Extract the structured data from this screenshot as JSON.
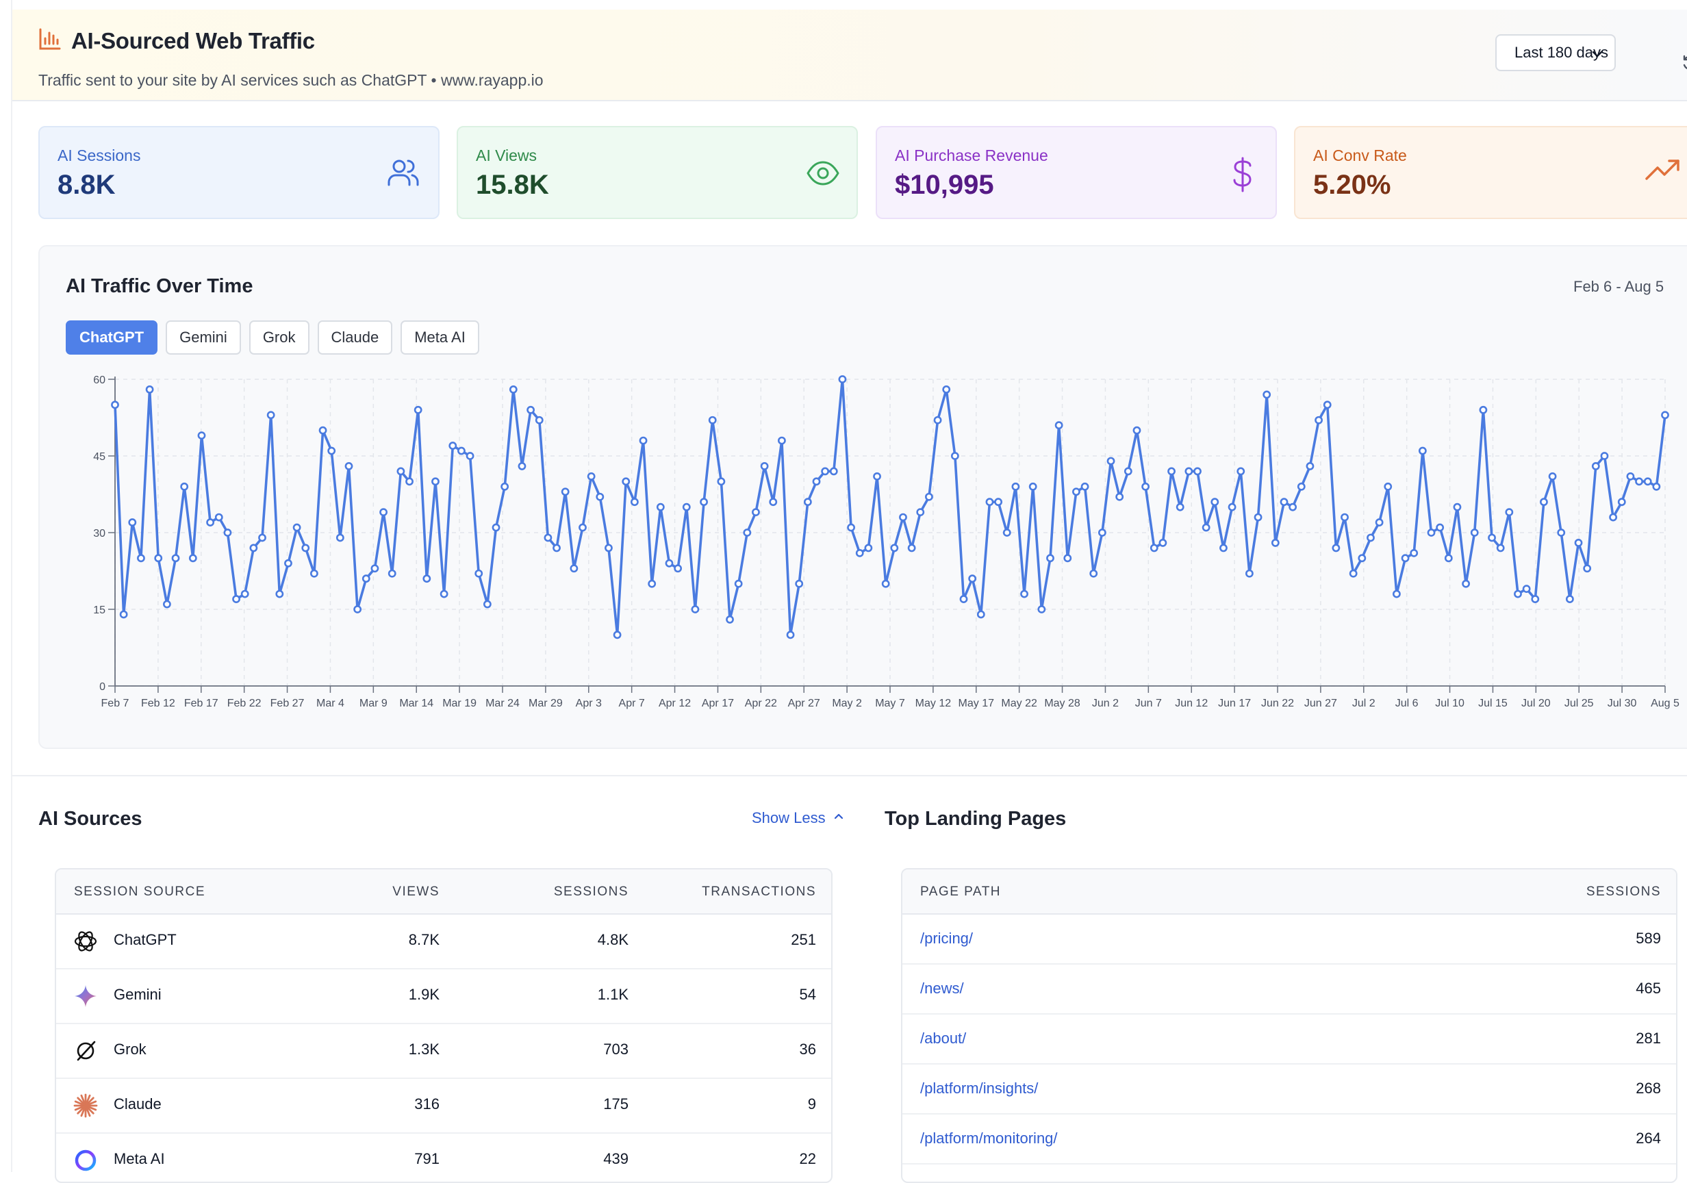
{
  "header": {
    "title": "AI-Sourced Web Traffic",
    "subtitle": "Traffic sent to your site by AI services such as ChatGPT • www.rayapp.io",
    "range_select": "Last 180 days"
  },
  "kpis": {
    "sessions": {
      "label": "AI Sessions",
      "value": "8.8K"
    },
    "views": {
      "label": "AI Views",
      "value": "15.8K"
    },
    "revenue": {
      "label": "AI Purchase Revenue",
      "value": "$10,995"
    },
    "conv": {
      "label": "AI Conv Rate",
      "value": "5.20%"
    }
  },
  "traffic": {
    "title": "AI Traffic Over Time",
    "date_range": "Feb 6 - Aug 5",
    "tabs": [
      "ChatGPT",
      "Gemini",
      "Grok",
      "Claude",
      "Meta AI"
    ],
    "active_tab": "ChatGPT"
  },
  "colors": {
    "accent": "#4f80e8",
    "line": "#4a7be0"
  },
  "chart_data": {
    "type": "line",
    "series": [
      {
        "values": [
          55,
          14,
          32,
          25,
          58,
          25,
          16,
          25,
          39,
          25,
          49,
          32,
          33,
          30,
          17,
          18,
          27,
          29,
          53,
          18,
          24,
          31,
          27,
          22,
          50,
          46,
          29,
          43,
          15,
          21,
          23,
          34,
          22,
          42,
          40,
          54,
          21,
          40,
          18,
          47,
          46,
          45,
          22,
          16,
          31,
          39,
          58,
          43,
          54,
          52,
          29,
          27,
          38,
          23,
          31,
          41,
          37,
          27,
          10,
          40,
          36,
          48,
          20,
          35,
          24,
          23,
          35,
          15,
          36,
          52,
          40,
          13,
          20,
          30,
          34,
          43,
          36,
          48,
          10,
          20,
          36,
          40,
          42,
          42,
          60,
          31,
          26,
          27,
          41,
          20,
          27,
          33,
          27,
          34,
          37,
          52,
          58,
          45,
          17,
          21,
          14,
          36,
          36,
          30,
          39,
          18,
          39,
          15,
          25,
          51,
          25,
          38,
          39,
          22,
          30,
          44,
          37,
          42,
          50,
          39,
          27,
          28,
          42,
          35,
          42,
          42,
          31,
          36,
          27,
          35,
          42,
          22,
          33,
          57,
          28,
          36,
          35,
          39,
          43,
          52,
          55,
          27,
          33,
          22,
          25,
          29,
          32,
          39,
          18,
          25,
          26,
          46,
          30,
          31,
          25,
          35,
          20,
          30,
          54,
          29,
          27,
          34,
          18,
          19,
          17,
          36,
          41,
          30,
          17,
          28,
          23,
          43,
          45,
          33,
          36,
          41,
          40,
          40,
          39,
          53
        ]
      }
    ],
    "x_ticks": [
      "Feb 7",
      "Feb 12",
      "Feb 17",
      "Feb 22",
      "Feb 27",
      "Mar 4",
      "Mar 9",
      "Mar 14",
      "Mar 19",
      "Mar 24",
      "Mar 29",
      "Apr 3",
      "Apr 7",
      "Apr 12",
      "Apr 17",
      "Apr 22",
      "Apr 27",
      "May 2",
      "May 7",
      "May 12",
      "May 17",
      "May 22",
      "May 28",
      "Jun 2",
      "Jun 7",
      "Jun 12",
      "Jun 17",
      "Jun 22",
      "Jun 27",
      "Jul 2",
      "Jul 6",
      "Jul 10",
      "Jul 15",
      "Jul 20",
      "Jul 25",
      "Jul 30",
      "Aug 5"
    ],
    "y_ticks": [
      0,
      15,
      30,
      45,
      60
    ],
    "ylim": [
      0,
      60
    ],
    "grid": true
  },
  "sources": {
    "title": "AI Sources",
    "show_less": "Show Less",
    "columns": [
      "SESSION SOURCE",
      "VIEWS",
      "SESSIONS",
      "TRANSACTIONS"
    ],
    "rows": [
      {
        "name": "ChatGPT",
        "icon": "chatgpt-icon",
        "views": "8.7K",
        "sessions": "4.8K",
        "transactions": "251"
      },
      {
        "name": "Gemini",
        "icon": "gemini-icon",
        "views": "1.9K",
        "sessions": "1.1K",
        "transactions": "54"
      },
      {
        "name": "Grok",
        "icon": "grok-icon",
        "views": "1.3K",
        "sessions": "703",
        "transactions": "36"
      },
      {
        "name": "Claude",
        "icon": "claude-icon",
        "views": "316",
        "sessions": "175",
        "transactions": "9"
      },
      {
        "name": "Meta AI",
        "icon": "meta-ai-icon",
        "views": "791",
        "sessions": "439",
        "transactions": "22"
      }
    ]
  },
  "landing": {
    "title": "Top Landing Pages",
    "columns": [
      "PAGE PATH",
      "SESSIONS"
    ],
    "rows": [
      {
        "path": "/pricing/",
        "sessions": "589"
      },
      {
        "path": "/news/",
        "sessions": "465"
      },
      {
        "path": "/about/",
        "sessions": "281"
      },
      {
        "path": "/platform/insights/",
        "sessions": "268"
      },
      {
        "path": "/platform/monitoring/",
        "sessions": "264"
      }
    ]
  }
}
